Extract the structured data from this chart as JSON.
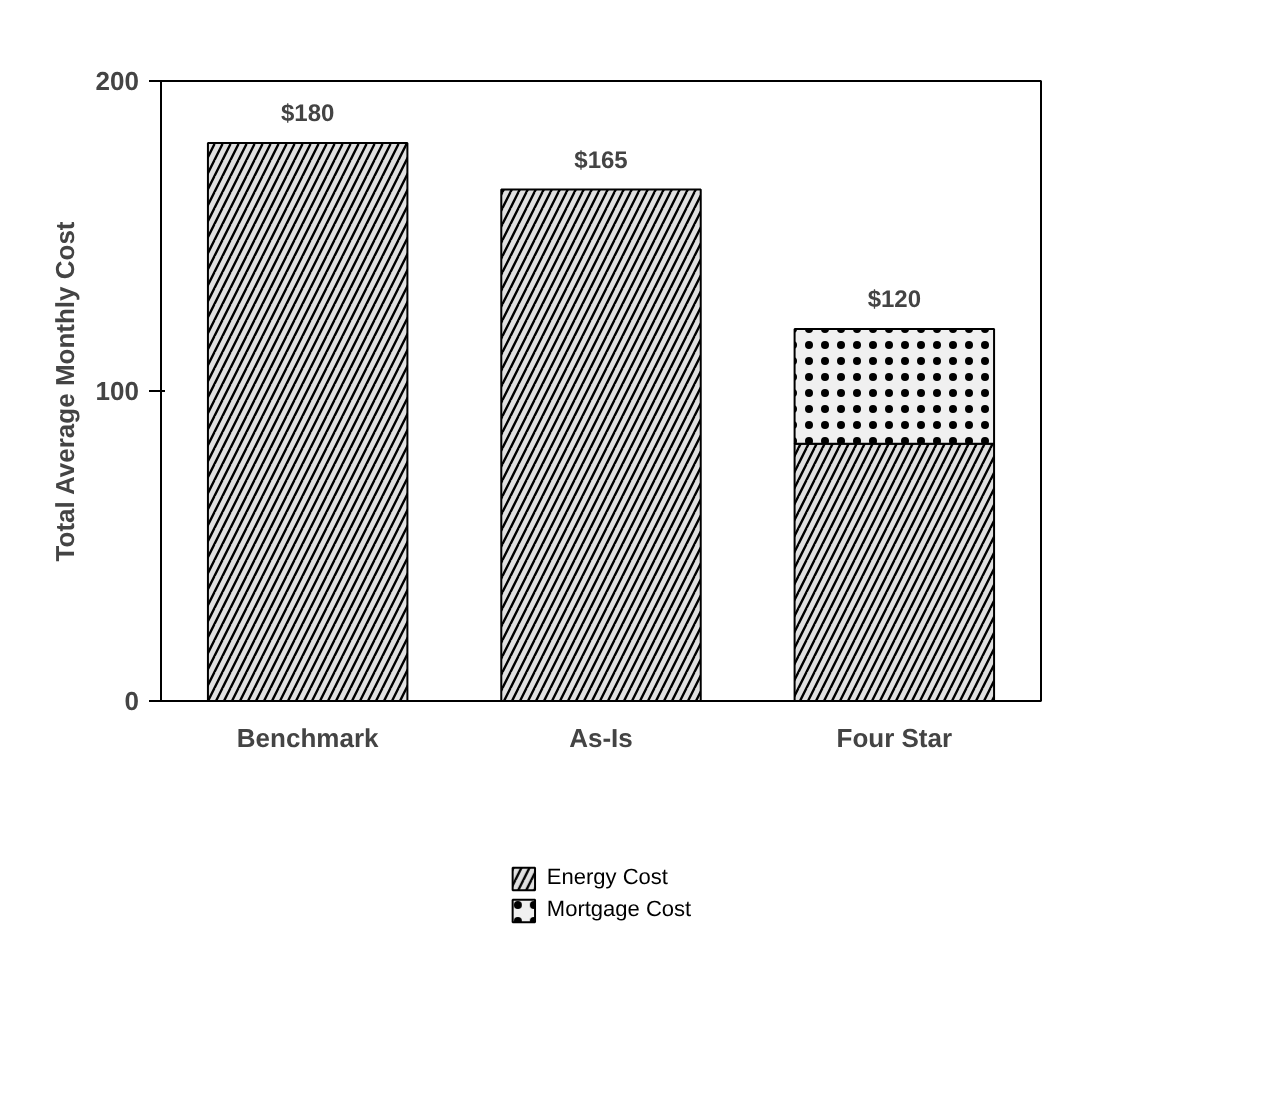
{
  "chart_data": {
    "type": "bar",
    "ylabel": "Total Average Monthly Cost",
    "categories": [
      "Benchmark",
      "As-Is",
      "Four Star"
    ],
    "series": [
      {
        "name": "Energy Cost",
        "color": "#e0e0e0",
        "values": [
          180,
          165,
          83
        ]
      },
      {
        "name": "Mortgage Cost",
        "color": "#f0f0f0",
        "values": [
          null,
          null,
          37
        ]
      }
    ],
    "stacked": true,
    "totals": [
      "$180",
      "$165",
      "$120"
    ],
    "ylim": [
      0,
      200
    ],
    "yticks": [
      0,
      100,
      200
    ],
    "grid": false,
    "legend": "bottom"
  }
}
